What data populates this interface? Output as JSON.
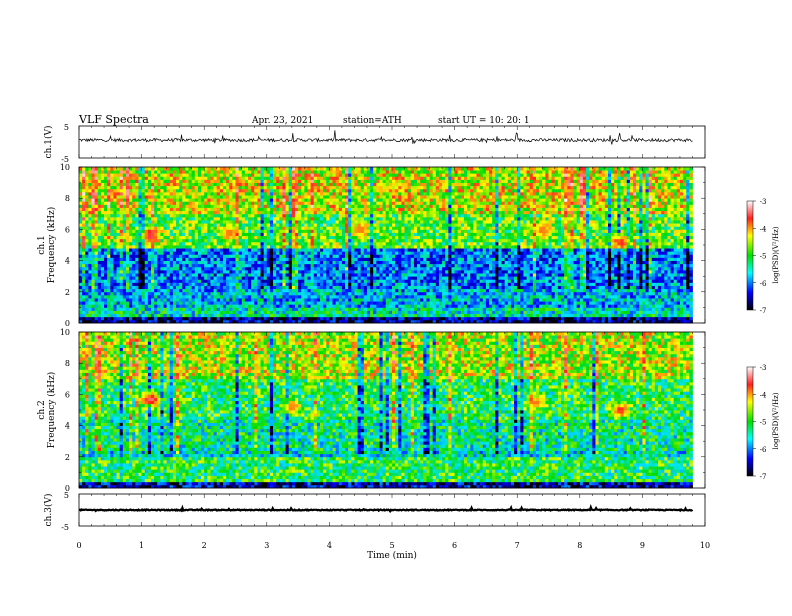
{
  "header": {
    "title": "VLF  Spectra",
    "date": "Apr. 23, 2021",
    "station": "station=ATH",
    "start": "start  UT  =   10: 20: 1"
  },
  "axes": {
    "ch1_label": "ch.1(V)",
    "ch3_label": "ch.3(V)",
    "spec1_label_a": "ch.1",
    "spec2_label_a": "ch.2",
    "freq_label": "Frequency  (kHz)",
    "xlabel": "Time  (min)",
    "x_ticks": [
      "0",
      "1",
      "2",
      "3",
      "4",
      "5",
      "6",
      "7",
      "8",
      "9",
      "10"
    ],
    "freq_ticks": [
      "0",
      "2",
      "4",
      "6",
      "8",
      "10"
    ],
    "volt_ticks": [
      "5",
      "-5"
    ]
  },
  "colorbar": {
    "label": "log(PSD)(V²/Hz)",
    "ticks": [
      "-3",
      "-4",
      "-5",
      "-6",
      "-7"
    ],
    "colors": [
      "#ffffff",
      "#ff2020",
      "#ffff00",
      "#00e000",
      "#00ffff",
      "#0000ff",
      "#000000"
    ]
  },
  "chart_data": [
    {
      "type": "line",
      "panel": "ch.1 waveform",
      "xlabel": "Time (min)",
      "ylabel": "ch.1(V)",
      "xlim": [
        0,
        10
      ],
      "ylim": [
        -5,
        5
      ],
      "trace_extent_min": 9.8,
      "baseline_v": 0.6,
      "noise_amplitude_v": 1.0
    },
    {
      "type": "heatmap",
      "panel": "ch.1 spectrogram",
      "xlabel": "Time (min)",
      "ylabel": "Frequency (kHz)",
      "xlim": [
        0,
        10
      ],
      "ylim": [
        0,
        10
      ],
      "data_extent_min": 9.8,
      "color_scale": "log(PSD)(V^2/Hz)",
      "clim": [
        -7,
        -3
      ],
      "bands": [
        {
          "f_low": 0.0,
          "f_high": 0.5,
          "level": -6.6
        },
        {
          "f_low": 0.5,
          "f_high": 1.0,
          "level": -5.4
        },
        {
          "f_low": 1.0,
          "f_high": 2.3,
          "level": -5.7
        },
        {
          "f_low": 2.3,
          "f_high": 4.8,
          "level": -5.9
        },
        {
          "f_low": 4.8,
          "f_high": 7.0,
          "level": -4.9
        },
        {
          "f_low": 7.0,
          "f_high": 10.0,
          "level": -4.5
        }
      ],
      "hotspots": [
        {
          "t": 1.15,
          "f": 5.6,
          "level": -3.6
        },
        {
          "t": 2.4,
          "f": 5.8,
          "level": -4.0
        },
        {
          "t": 4.5,
          "f": 6.0,
          "level": -4.0
        },
        {
          "t": 7.4,
          "f": 6.0,
          "level": -4.0
        },
        {
          "t": 8.65,
          "f": 5.2,
          "level": -3.8
        }
      ]
    },
    {
      "type": "heatmap",
      "panel": "ch.2 spectrogram",
      "xlabel": "Time (min)",
      "ylabel": "Frequency (kHz)",
      "xlim": [
        0,
        10
      ],
      "ylim": [
        0,
        10
      ],
      "data_extent_min": 9.8,
      "color_scale": "log(PSD)(V^2/Hz)",
      "clim": [
        -7,
        -3
      ],
      "bands": [
        {
          "f_low": 0.0,
          "f_high": 0.5,
          "level": -6.5
        },
        {
          "f_low": 0.5,
          "f_high": 2.0,
          "level": -5.1
        },
        {
          "f_low": 2.0,
          "f_high": 2.5,
          "level": -5.5
        },
        {
          "f_low": 2.5,
          "f_high": 4.5,
          "level": -5.3
        },
        {
          "f_low": 4.5,
          "f_high": 7.0,
          "level": -5.1
        },
        {
          "f_low": 7.0,
          "f_high": 10.0,
          "level": -4.6
        }
      ],
      "hotspots": [
        {
          "t": 1.15,
          "f": 5.7,
          "level": -3.5
        },
        {
          "t": 3.4,
          "f": 5.2,
          "level": -4.0
        },
        {
          "t": 7.3,
          "f": 5.5,
          "level": -4.0
        },
        {
          "t": 8.65,
          "f": 5.0,
          "level": -3.8
        }
      ]
    },
    {
      "type": "line",
      "panel": "ch.3 waveform",
      "xlabel": "Time (min)",
      "ylabel": "ch.3(V)",
      "xlim": [
        0,
        10
      ],
      "ylim": [
        -5,
        5
      ],
      "trace_extent_min": 9.8,
      "baseline_v": 0.0,
      "noise_amplitude_v": 0.3
    }
  ]
}
